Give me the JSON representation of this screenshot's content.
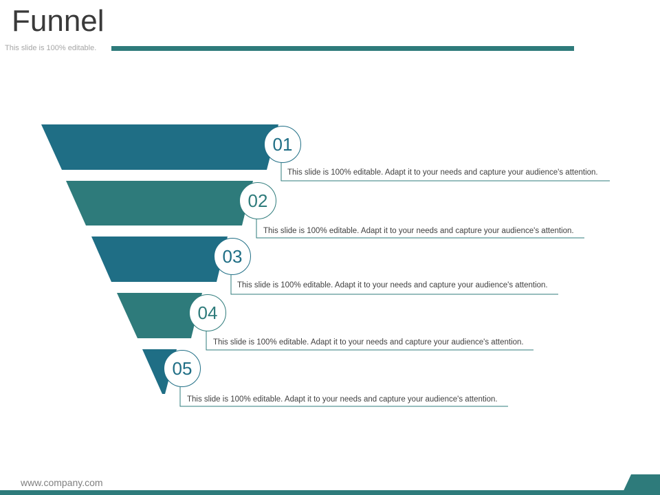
{
  "slide": {
    "title": "Funnel",
    "subtitle": "This slide is 100% editable.",
    "footer_url": "www.company.com"
  },
  "colors": {
    "dark_teal": "#1f6e85",
    "mid_teal": "#2e7b7b",
    "accent": "#2e7b7b",
    "text": "#404040"
  },
  "funnel": {
    "stages": [
      {
        "number": "01",
        "text": "This slide is 100% editable. Adapt it to your needs and capture your audience's attention.",
        "color": "#1f6e85"
      },
      {
        "number": "02",
        "text": "This slide is 100% editable. Adapt it to your needs and capture your audience's attention.",
        "color": "#2e7b7b"
      },
      {
        "number": "03",
        "text": "This slide is 100% editable. Adapt it to your needs and capture your audience's attention.",
        "color": "#1f6e85"
      },
      {
        "number": "04",
        "text": "This slide is 100% editable. Adapt it to your needs and capture your audience's attention.",
        "color": "#2e7b7b"
      },
      {
        "number": "05",
        "text": "This slide is 100% editable. Adapt it to your needs and capture your audience's attention.",
        "color": "#1f6e85"
      }
    ]
  }
}
